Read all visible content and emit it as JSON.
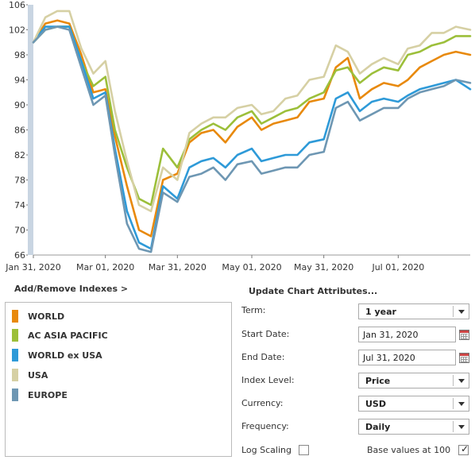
{
  "chart_data": {
    "type": "line",
    "ylim": [
      66,
      106
    ],
    "yticks": [
      66,
      70,
      74,
      78,
      82,
      86,
      90,
      94,
      98,
      102,
      106
    ],
    "xticks": [
      "Jan 31, 2020",
      "Mar 01, 2020",
      "Mar 31, 2020",
      "May 01, 2020",
      "May 31, 2020",
      "Jul 01, 2020"
    ],
    "x": [
      "2020-01-31",
      "2020-02-05",
      "2020-02-10",
      "2020-02-15",
      "2020-02-20",
      "2020-02-25",
      "2020-03-01",
      "2020-03-05",
      "2020-03-10",
      "2020-03-15",
      "2020-03-20",
      "2020-03-25",
      "2020-03-31",
      "2020-04-05",
      "2020-04-10",
      "2020-04-15",
      "2020-04-20",
      "2020-04-25",
      "2020-05-01",
      "2020-05-05",
      "2020-05-10",
      "2020-05-15",
      "2020-05-20",
      "2020-05-25",
      "2020-05-31",
      "2020-06-05",
      "2020-06-10",
      "2020-06-15",
      "2020-06-20",
      "2020-06-25",
      "2020-07-01",
      "2020-07-05",
      "2020-07-10",
      "2020-07-15",
      "2020-07-20",
      "2020-07-25",
      "2020-07-31"
    ],
    "series": [
      {
        "name": "WORLD",
        "color": "#e8890c",
        "values": [
          100,
          103,
          103.5,
          103,
          98,
          92,
          92.5,
          85,
          77,
          70,
          69,
          78,
          79,
          84,
          85.5,
          86,
          84,
          86.5,
          88,
          86,
          87,
          87.5,
          88,
          90.5,
          91,
          96,
          97.5,
          91,
          92.5,
          93.5,
          93,
          94,
          96,
          97,
          98,
          98.5,
          98
        ]
      },
      {
        "name": "AC ASIA PACIFIC",
        "color": "#9cbf3a",
        "values": [
          100,
          102,
          102.5,
          102.5,
          97,
          93,
          94.5,
          86,
          80,
          75,
          74,
          83,
          80,
          84.5,
          86,
          87,
          86,
          88,
          89,
          87,
          88,
          89,
          89.5,
          91,
          92,
          95.5,
          96,
          93.5,
          95,
          96,
          95.5,
          98,
          98.5,
          99.5,
          100,
          101,
          101
        ]
      },
      {
        "name": "WORLD ex USA",
        "color": "#2e9ad8",
        "values": [
          100,
          102.5,
          102.5,
          102.5,
          97,
          91,
          92,
          83,
          73,
          68,
          67,
          77,
          75,
          80,
          81,
          81.5,
          80,
          82,
          83,
          81,
          81.5,
          82,
          82,
          84,
          84.5,
          91,
          92,
          89,
          90.5,
          91,
          90.5,
          91.5,
          92.5,
          93,
          93.5,
          94,
          92.5
        ]
      },
      {
        "name": "USA",
        "color": "#d6d0a4",
        "values": [
          100,
          104,
          105,
          105,
          99,
          95,
          97,
          89,
          81,
          74,
          73,
          80,
          78,
          85.5,
          87,
          88,
          88,
          89.5,
          90,
          88.5,
          89,
          91,
          91.5,
          94,
          94.5,
          99.5,
          98.5,
          95,
          96.5,
          97.5,
          96.5,
          99,
          99.5,
          101.5,
          101.5,
          102.5,
          102
        ]
      },
      {
        "name": "EUROPE",
        "color": "#6e97b3",
        "values": [
          100,
          102,
          102.5,
          102,
          96,
          90,
          91.5,
          82,
          71,
          67,
          66.5,
          76,
          74.5,
          78.5,
          79,
          80,
          78,
          80.5,
          81,
          79,
          79.5,
          80,
          80,
          82,
          82.5,
          89.5,
          90.5,
          87.5,
          88.5,
          89.5,
          89.5,
          91,
          92,
          92.5,
          93,
          94,
          93.5
        ]
      }
    ]
  },
  "links": {
    "add_remove": "Add/Remove Indexes >",
    "update_attributes": "Update Chart Attributes..."
  },
  "legend": [
    {
      "label": "WORLD",
      "color": "#e8890c"
    },
    {
      "label": "AC ASIA PACIFIC",
      "color": "#9cbf3a"
    },
    {
      "label": "WORLD ex USA",
      "color": "#2e9ad8"
    },
    {
      "label": "USA",
      "color": "#d6d0a4"
    },
    {
      "label": "EUROPE",
      "color": "#6e97b3"
    }
  ],
  "form": {
    "term_label": "Term:",
    "term_value": "1 year",
    "start_label": "Start Date:",
    "start_value": "Jan 31, 2020",
    "end_label": "End Date:",
    "end_value": "Jul 31, 2020",
    "index_level_label": "Index Level:",
    "index_level_value": "Price",
    "currency_label": "Currency:",
    "currency_value": "USD",
    "frequency_label": "Frequency:",
    "frequency_value": "Daily",
    "log_scaling_label": "Log Scaling",
    "base_values_label": "Base values at 100"
  }
}
